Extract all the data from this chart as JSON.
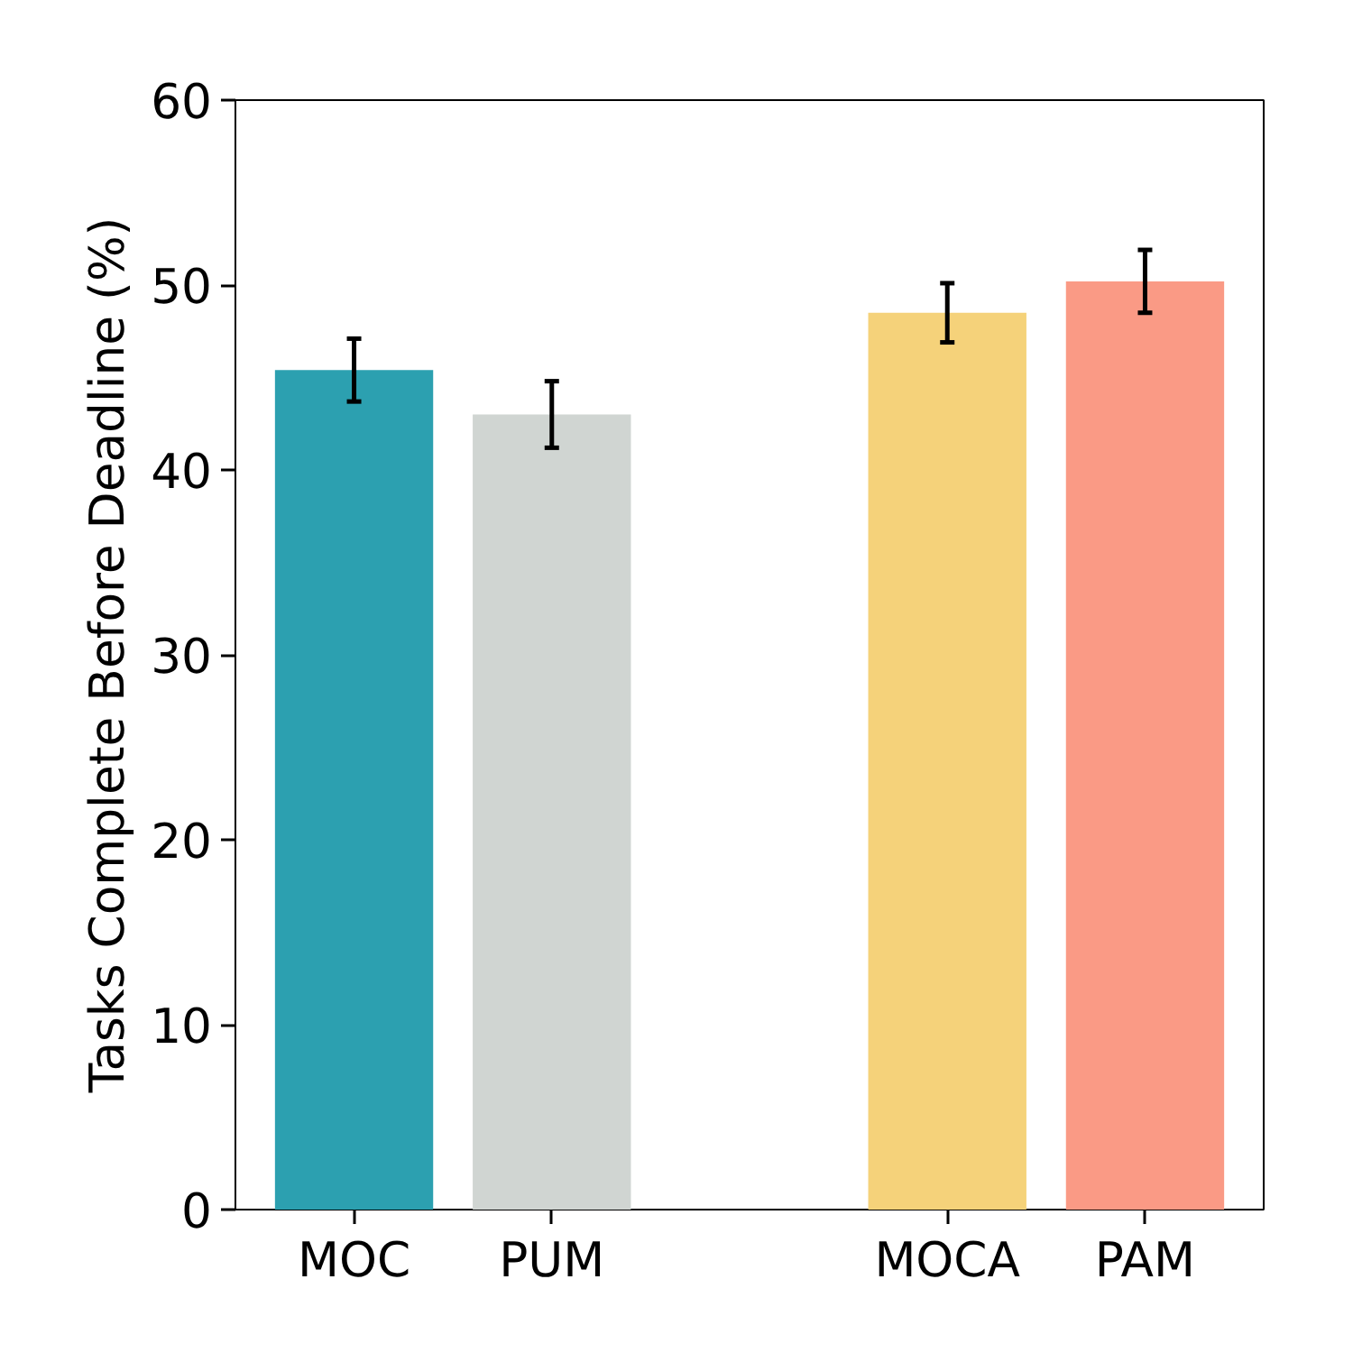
{
  "chart_data": {
    "type": "bar",
    "ylabel": "Tasks Complete Before Deadline (%)",
    "categories": [
      "MOC",
      "PUM",
      null,
      "MOCA",
      "PAM"
    ],
    "values": [
      45.4,
      43.0,
      null,
      48.5,
      50.2
    ],
    "errors": [
      1.7,
      1.8,
      null,
      1.6,
      1.7
    ],
    "colors": [
      "#2ca0b0",
      "#d0d5d2",
      "#ffffff",
      "#f5d27a",
      "#fa9a85"
    ],
    "ylim": [
      0,
      60
    ],
    "yticks": [
      0,
      10,
      20,
      30,
      40,
      50,
      60
    ],
    "grid": false
  }
}
